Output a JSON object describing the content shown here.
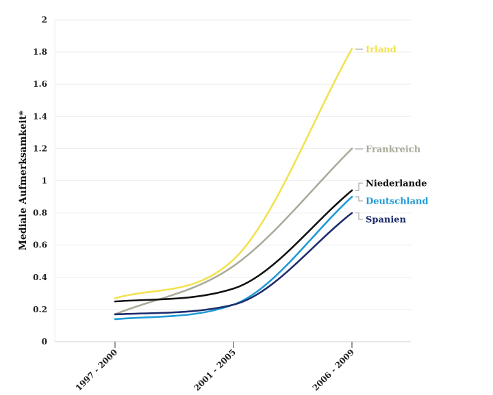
{
  "chart_data": {
    "type": "line",
    "ylabel": "Mediale Aufmerksamkeit*",
    "xlabel": "",
    "title": "",
    "categories": [
      "1997 - 2000",
      "2001 - 2005",
      "2006 - 2009"
    ],
    "ylim": [
      0,
      2
    ],
    "yticks": [
      "0",
      "0.2",
      "0.4",
      "0.6",
      "0.8",
      "1",
      "1.2",
      "1.4",
      "1.6",
      "1.8",
      "2"
    ],
    "grid": true,
    "legend": "direct labels at line ends (right)",
    "series": [
      {
        "name": "Irland",
        "color": "#f2e24d",
        "values": [
          0.27,
          0.51,
          1.82
        ]
      },
      {
        "name": "Frankreich",
        "color": "#a9ab9a",
        "values": [
          0.17,
          0.47,
          1.2
        ]
      },
      {
        "name": "Niederlande",
        "color": "#111111",
        "values": [
          0.25,
          0.33,
          0.94
        ]
      },
      {
        "name": "Deutschland",
        "color": "#1f9ad6",
        "values": [
          0.14,
          0.23,
          0.9
        ]
      },
      {
        "name": "Spanien",
        "color": "#1d2c6b",
        "values": [
          0.17,
          0.23,
          0.8
        ]
      }
    ]
  }
}
